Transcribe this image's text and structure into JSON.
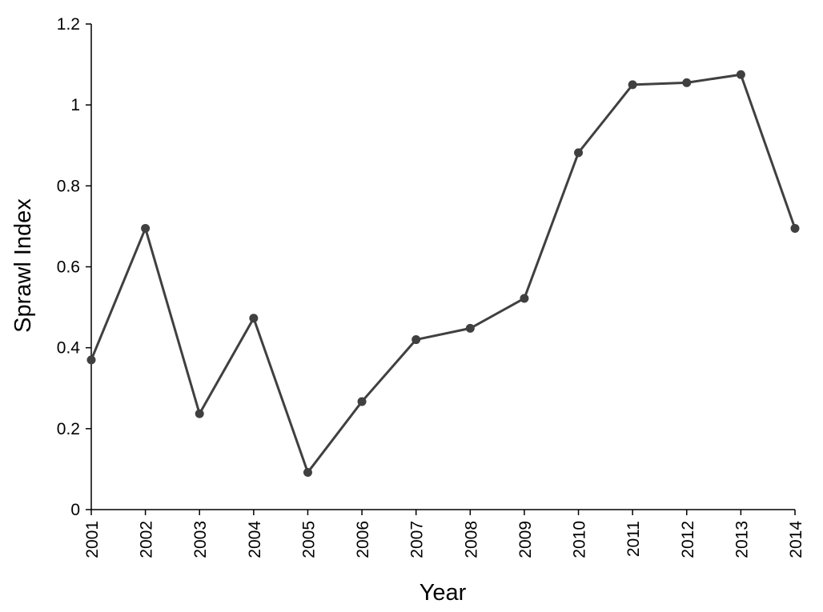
{
  "chart_data": {
    "type": "line",
    "xlabel": "Year",
    "ylabel": "Sprawl Index",
    "ylim": [
      0,
      1.2
    ],
    "yticks": [
      "0",
      "0.2",
      "0.4",
      "0.6",
      "0.8",
      "1",
      "1.2"
    ],
    "categories": [
      "2001",
      "2002",
      "2003",
      "2004",
      "2005",
      "2006",
      "2007",
      "2008",
      "2009",
      "2010",
      "2011",
      "2012",
      "2013",
      "2014"
    ],
    "series": [
      {
        "values": [
          0.37,
          0.695,
          0.237,
          0.473,
          0.092,
          0.267,
          0.42,
          0.448,
          0.522,
          0.882,
          1.05,
          1.055,
          1.075,
          0.695
        ],
        "color": "#404040"
      }
    ],
    "grid": false,
    "legend": "none"
  }
}
